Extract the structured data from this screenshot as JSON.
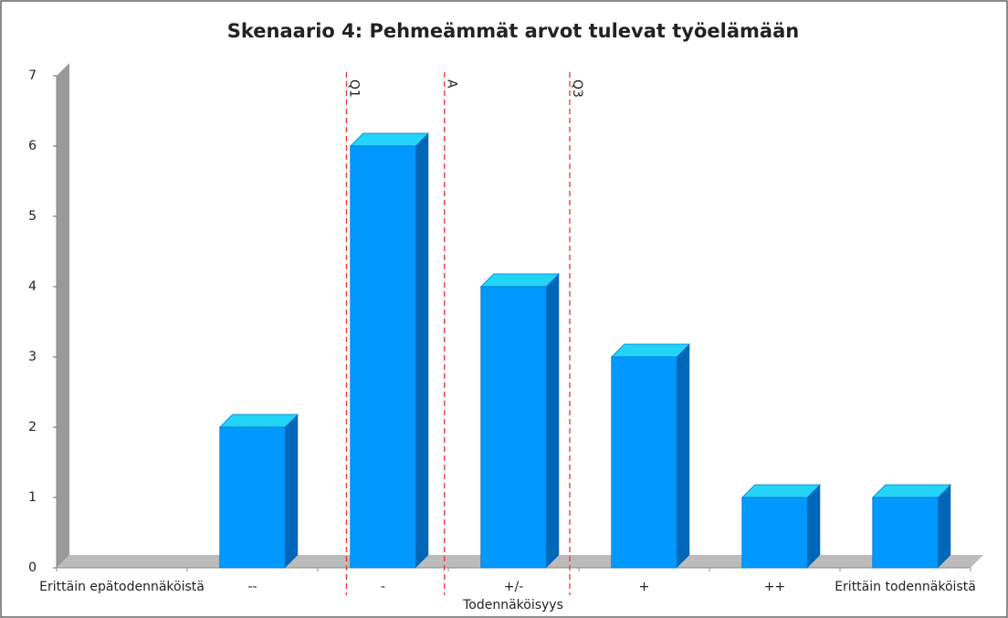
{
  "chart_data": {
    "type": "bar3d",
    "title": "Skenaario 4: Pehmeämmät arvot tulevat työelämään",
    "x_label": "Todennäköisyys",
    "categories": [
      "Erittäin epätodennäköistä",
      "--",
      "-",
      "+/-",
      "+",
      "++",
      "Erittäin todennäköistä"
    ],
    "values": [
      0,
      2,
      6,
      4,
      3,
      1,
      1
    ],
    "color": "#0099ff",
    "ylim": [
      0,
      7
    ],
    "yticks": [
      0,
      1,
      2,
      3,
      4,
      5,
      6,
      7
    ],
    "markers": [
      {
        "label": "Q1",
        "x": 1.72
      },
      {
        "label": "A",
        "x": 2.47
      },
      {
        "label": "Q3",
        "x": 3.43
      }
    ],
    "marker_color": "#ee3333"
  }
}
